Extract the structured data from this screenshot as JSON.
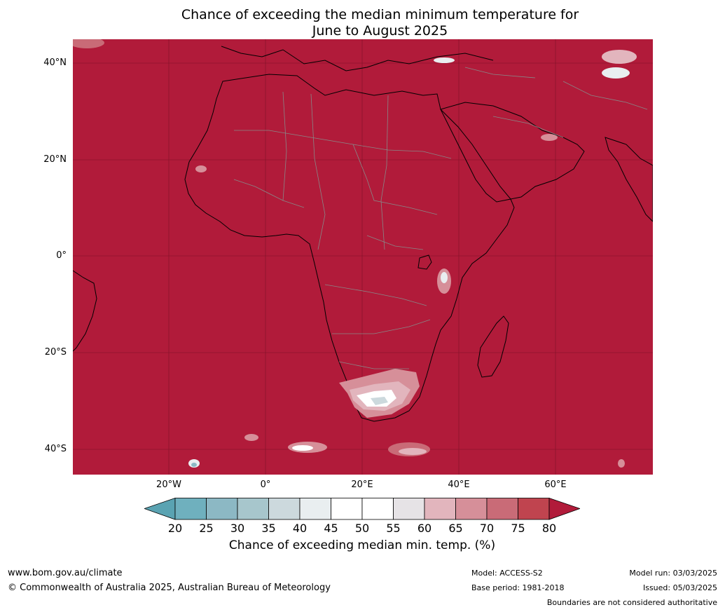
{
  "title_line1": "Chance of exceeding the median minimum temperature for",
  "title_line2": "June to August 2025",
  "map": {
    "background_color": "#b11b3a",
    "lat_labels": [
      "40°N",
      "20°N",
      "0°",
      "20°S",
      "40°S"
    ],
    "lon_labels": [
      "20°W",
      "0°",
      "20°E",
      "40°E",
      "60°E"
    ]
  },
  "colorbar": {
    "title": "Chance of exceeding median min. temp. (%)",
    "ticks": [
      "20",
      "25",
      "30",
      "35",
      "40",
      "45",
      "50",
      "55",
      "60",
      "65",
      "70",
      "75",
      "80"
    ],
    "colors": [
      "#5aa3b2",
      "#6fb0be",
      "#8cb8c4",
      "#a7c6cc",
      "#ccd9dd",
      "#e9eef0",
      "#ffffff",
      "#ffffff",
      "#e6e3e6",
      "#e2b5bd",
      "#d68f99",
      "#c96b77",
      "#c0444f",
      "#b11b3a"
    ]
  },
  "footer": {
    "website": "www.bom.gov.au/climate",
    "copyright": "© Commonwealth of Australia 2025, Australian Bureau of Meteorology",
    "model": "Model: ACCESS-S2",
    "base_period": "Base period: 1981-2018",
    "model_run": "Model run: 03/03/2025",
    "issued": "Issued: 05/03/2025",
    "disclaimer": "Boundaries are not considered authoritative"
  }
}
